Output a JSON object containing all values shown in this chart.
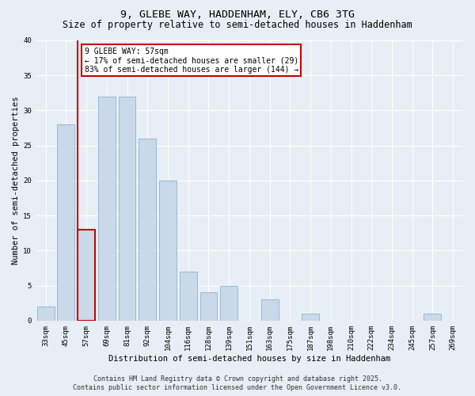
{
  "title_line1": "9, GLEBE WAY, HADDENHAM, ELY, CB6 3TG",
  "title_line2": "Size of property relative to semi-detached houses in Haddenham",
  "xlabel": "Distribution of semi-detached houses by size in Haddenham",
  "ylabel": "Number of semi-detached properties",
  "categories": [
    "33sqm",
    "45sqm",
    "57sqm",
    "69sqm",
    "81sqm",
    "92sqm",
    "104sqm",
    "116sqm",
    "128sqm",
    "139sqm",
    "151sqm",
    "163sqm",
    "175sqm",
    "187sqm",
    "198sqm",
    "210sqm",
    "222sqm",
    "234sqm",
    "245sqm",
    "257sqm",
    "269sqm"
  ],
  "values": [
    2,
    28,
    13,
    32,
    32,
    26,
    20,
    7,
    4,
    5,
    0,
    3,
    0,
    1,
    0,
    0,
    0,
    0,
    0,
    1,
    0
  ],
  "highlight_index": 2,
  "bar_color": "#c9d9ea",
  "bar_edge_color": "#7aaac8",
  "highlight_color": "#cc0000",
  "ylim": [
    0,
    40
  ],
  "yticks": [
    0,
    5,
    10,
    15,
    20,
    25,
    30,
    35,
    40
  ],
  "annotation_title": "9 GLEBE WAY: 57sqm",
  "annotation_line2": "← 17% of semi-detached houses are smaller (29)",
  "annotation_line3": "83% of semi-detached houses are larger (144) →",
  "footer_line1": "Contains HM Land Registry data © Crown copyright and database right 2025.",
  "footer_line2": "Contains public sector information licensed under the Open Government Licence v3.0.",
  "bg_color": "#e8eef5",
  "plot_bg_color": "#e8eef5",
  "grid_color": "#ffffff",
  "title_fontsize": 9.5,
  "subtitle_fontsize": 8.5,
  "axis_label_fontsize": 7.5,
  "tick_fontsize": 6.5,
  "annotation_fontsize": 7,
  "footer_fontsize": 6
}
